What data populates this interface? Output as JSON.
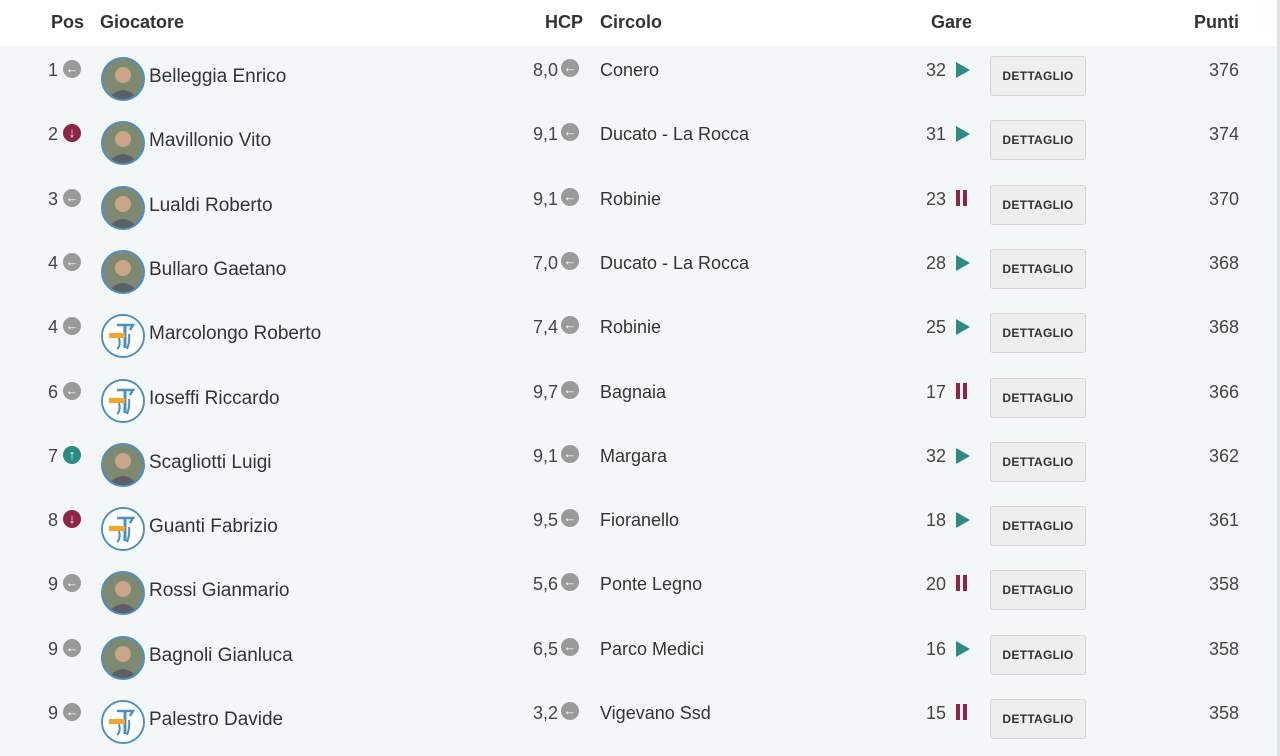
{
  "headers": {
    "pos": "Pos",
    "player": "Giocatore",
    "hcp": "HCP",
    "club": "Circolo",
    "races": "Gare",
    "points": "Punti"
  },
  "button_label": "DETTAGLIO",
  "colors": {
    "trend_same": "#9a9a9a",
    "trend_down": "#8f2447",
    "trend_up": "#2b8c84",
    "status_play": "#2b8c84",
    "status_pause": "#8f2447",
    "avatar_border": "#4a90c8",
    "row_background": "#f4f7f8"
  },
  "rows": [
    {
      "pos": "1",
      "trend": "same",
      "avatar": "photo",
      "name": "Belleggia Enrico",
      "hcp": "8,0",
      "club": "Conero",
      "races": "32",
      "status": "play",
      "points": "376"
    },
    {
      "pos": "2",
      "trend": "down",
      "avatar": "photo",
      "name": "Mavillonio Vito",
      "hcp": "9,1",
      "club": "Ducato - La Rocca",
      "races": "31",
      "status": "play",
      "points": "374"
    },
    {
      "pos": "3",
      "trend": "same",
      "avatar": "photo",
      "name": "Lualdi Roberto",
      "hcp": "9,1",
      "club": "Robinie",
      "races": "23",
      "status": "pause",
      "points": "370"
    },
    {
      "pos": "4",
      "trend": "same",
      "avatar": "photo",
      "name": "Bullaro Gaetano",
      "hcp": "7,0",
      "club": "Ducato - La Rocca",
      "races": "28",
      "status": "play",
      "points": "368"
    },
    {
      "pos": "4",
      "trend": "same",
      "avatar": "logo",
      "name": "Marcolongo Roberto",
      "hcp": "7,4",
      "club": "Robinie",
      "races": "25",
      "status": "play",
      "points": "368"
    },
    {
      "pos": "6",
      "trend": "same",
      "avatar": "logo",
      "name": "Ioseffi Riccardo",
      "hcp": "9,7",
      "club": "Bagnaia",
      "races": "17",
      "status": "pause",
      "points": "366"
    },
    {
      "pos": "7",
      "trend": "up",
      "avatar": "photo",
      "name": "Scagliotti Luigi",
      "hcp": "9,1",
      "club": "Margara",
      "races": "32",
      "status": "play",
      "points": "362"
    },
    {
      "pos": "8",
      "trend": "down",
      "avatar": "logo",
      "name": "Guanti Fabrizio",
      "hcp": "9,5",
      "club": "Fioranello",
      "races": "18",
      "status": "play",
      "points": "361"
    },
    {
      "pos": "9",
      "trend": "same",
      "avatar": "photo",
      "name": "Rossi Gianmario",
      "hcp": "5,6",
      "club": "Ponte Legno",
      "races": "20",
      "status": "pause",
      "points": "358"
    },
    {
      "pos": "9",
      "trend": "same",
      "avatar": "photo",
      "name": "Bagnoli Gianluca",
      "hcp": "6,5",
      "club": "Parco Medici",
      "races": "16",
      "status": "play",
      "points": "358"
    },
    {
      "pos": "9",
      "trend": "same",
      "avatar": "logo",
      "name": "Palestro Davide",
      "hcp": "3,2",
      "club": "Vigevano Ssd",
      "races": "15",
      "status": "pause",
      "points": "358"
    }
  ]
}
